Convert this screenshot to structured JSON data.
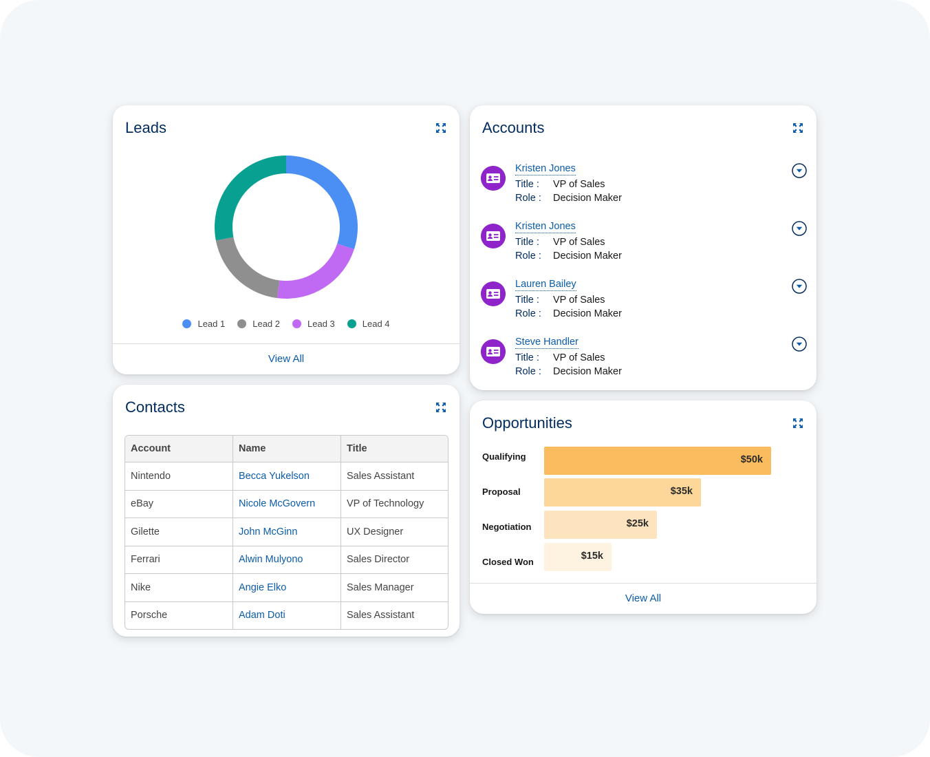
{
  "leads": {
    "title": "Leads",
    "view_all": "View All",
    "legend": [
      {
        "label": "Lead 1",
        "color": "#4b8ff5"
      },
      {
        "label": "Lead 2",
        "color": "#8f8f8f"
      },
      {
        "label": "Lead 3",
        "color": "#c06af3"
      },
      {
        "label": "Lead 4",
        "color": "#08a091"
      }
    ]
  },
  "chart_data": {
    "type": "pie",
    "donut": true,
    "categories": [
      "Lead 1",
      "Lead 2",
      "Lead 3",
      "Lead 4"
    ],
    "values": [
      30,
      20,
      22,
      28
    ],
    "colors": [
      "#4b8ff5",
      "#8f8f8f",
      "#c06af3",
      "#08a091"
    ],
    "segment_order_clockwise_from_top": [
      "Lead 1",
      "Lead 3",
      "Lead 2",
      "Lead 4"
    ],
    "legend_position": "bottom"
  },
  "accounts": {
    "title": "Accounts",
    "title_label": "Title",
    "role_label": "Role",
    "items": [
      {
        "name": "Kristen Jones",
        "title": "VP of Sales",
        "role": "Decision Maker"
      },
      {
        "name": "Kristen Jones",
        "title": "VP of Sales",
        "role": "Decision Maker"
      },
      {
        "name": "Lauren Bailey",
        "title": "VP of Sales",
        "role": "Decision Maker"
      },
      {
        "name": "Steve Handler",
        "title": "VP of Sales",
        "role": "Decision Maker"
      }
    ]
  },
  "contacts": {
    "title": "Contacts",
    "columns": [
      "Account",
      "Name",
      "Title"
    ],
    "rows": [
      [
        "Nintendo",
        "Becca Yukelson",
        "Sales Assistant"
      ],
      [
        "eBay",
        "Nicole McGovern",
        "VP of Technology"
      ],
      [
        "Gilette",
        "John McGinn",
        "UX Designer"
      ],
      [
        "Ferrari",
        "Alwin Mulyono",
        "Sales Director"
      ],
      [
        "Nike",
        "Angie Elko",
        "Sales Manager"
      ],
      [
        "Porsche",
        "Adam Doti",
        "Sales Assistant"
      ]
    ]
  },
  "opportunities": {
    "title": "Opportunities",
    "view_all": "View All",
    "stages": [
      {
        "label": "Qualifying",
        "value_label": "$50k",
        "value": 50,
        "color": "#fbbb5f"
      },
      {
        "label": "Proposal",
        "value_label": "$35k",
        "value": 35,
        "color": "#fdd79a"
      },
      {
        "label": "Negotiation",
        "value_label": "$25k",
        "value": 25,
        "color": "#fee4be"
      },
      {
        "label": "Closed Won",
        "value_label": "$15k",
        "value": 15,
        "color": "#fef2e1"
      }
    ]
  },
  "colors": {
    "brand_dark": "#032d60",
    "link": "#0b5cab",
    "avatar": "#8e24c9",
    "page_background": "#f4f7fa"
  }
}
